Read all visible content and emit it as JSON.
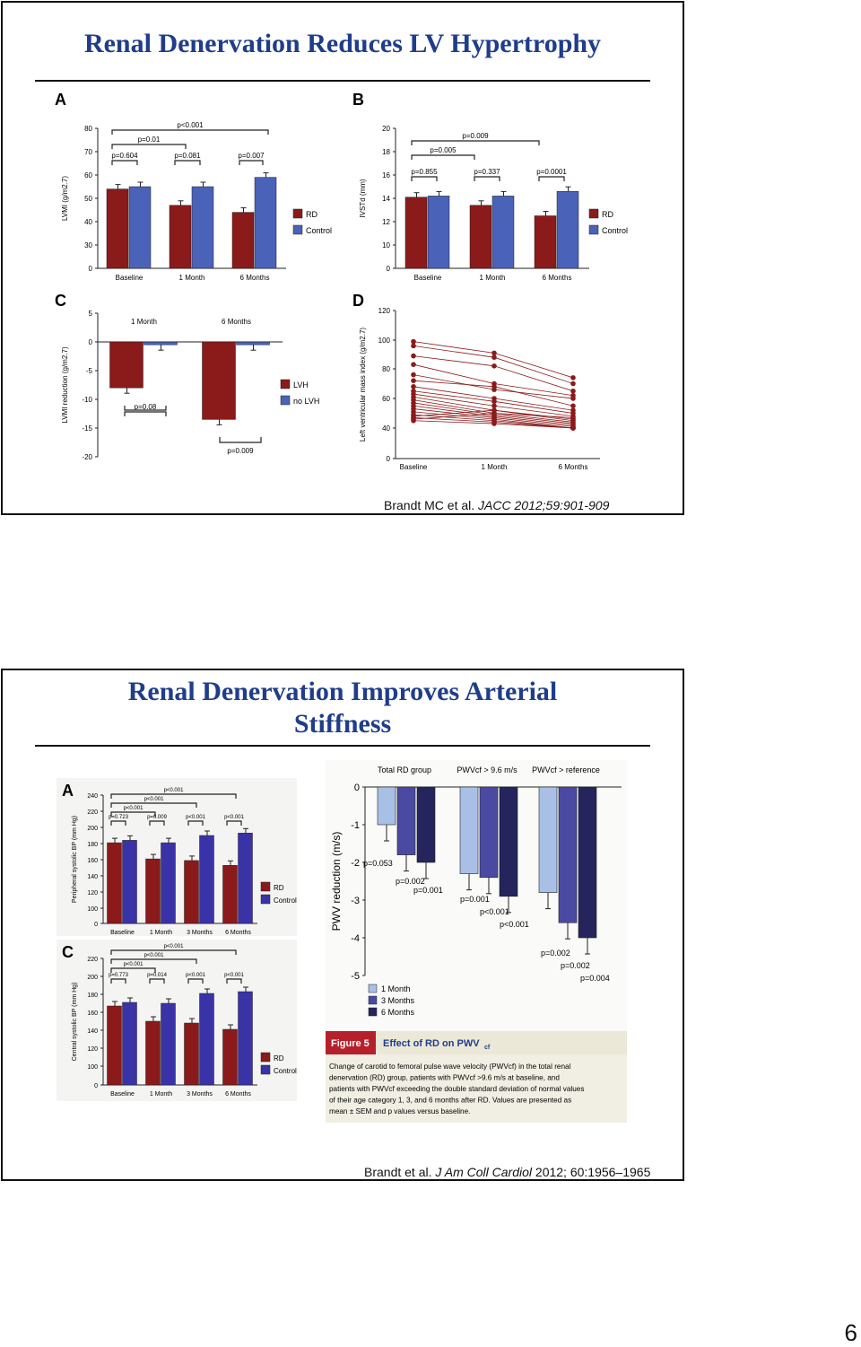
{
  "slides": [
    {
      "title": "Renal Denervation Reduces LV Hypertrophy",
      "citation": {
        "authors": "Brandt MC et al. ",
        "source": "JACC 2012;59:901-909"
      }
    },
    {
      "title_line1": "Renal Denervation Improves Arterial",
      "title_line2": "Stiffness",
      "citation": {
        "authors": "Brandt et al. ",
        "source": "J Am Coll Cardiol",
        "rest": " 2012; 60:1956–1965"
      }
    }
  ],
  "page_number": "6",
  "colors": {
    "rd": "#8b1a1a",
    "control": "#4a62b8",
    "title": "#1f3d8a",
    "m1": "#a9c0e6",
    "m3": "#4b4aa3",
    "m6": "#26245c"
  },
  "chart_data": [
    {
      "panel": "A",
      "type": "bar",
      "categories": [
        "Baseline",
        "1 Month",
        "6 Months"
      ],
      "ylabel": "LVMI (g/m2.7)",
      "yticks": [
        "0",
        "30",
        "40",
        "50",
        "60",
        "70",
        "80"
      ],
      "series": [
        {
          "name": "RD",
          "values": [
            54,
            47,
            44
          ]
        },
        {
          "name": "Control",
          "values": [
            55,
            55,
            59
          ]
        }
      ],
      "annotations": [
        "p<0.001",
        "p=0.01",
        "p=0.604",
        "p=0.081",
        "p=0.007"
      ]
    },
    {
      "panel": "B",
      "type": "bar",
      "categories": [
        "Baseline",
        "1 Month",
        "6 Months"
      ],
      "ylabel": "IVSTd (mm)",
      "yticks": [
        "0",
        "10",
        "12",
        "14",
        "16",
        "18",
        "20"
      ],
      "series": [
        {
          "name": "RD",
          "values": [
            14.1,
            13.4,
            12.5
          ]
        },
        {
          "name": "Control",
          "values": [
            14.2,
            14.2,
            14.6
          ]
        }
      ],
      "annotations": [
        "p=0.009",
        "p=0.005",
        "p=0.855",
        "p=0.337",
        "p=0.0001"
      ]
    },
    {
      "panel": "C",
      "type": "bar",
      "categories": [
        "1 Month",
        "6 Months"
      ],
      "ylabel": "LVMI reduction (g/m2.7)",
      "yticks": [
        "5",
        "0",
        "-5",
        "-10",
        "-15",
        "-20"
      ],
      "series": [
        {
          "name": "LVH",
          "values": [
            -8,
            -13.5
          ]
        },
        {
          "name": "no LVH",
          "values": [
            -0.5,
            -0.5
          ]
        }
      ],
      "annotations": [
        "p=0.08",
        "p=0.009"
      ]
    },
    {
      "panel": "D",
      "type": "line",
      "categories": [
        "Baseline",
        "1 Month",
        "6 Months"
      ],
      "ylabel": "Left ventricular mass index (g/m2.7)",
      "yticks": [
        "0",
        "40",
        "60",
        "80",
        "100",
        "120"
      ],
      "series": [
        {
          "values": [
            99,
            91,
            74
          ]
        },
        {
          "values": [
            96,
            88,
            70
          ]
        },
        {
          "values": [
            89,
            82,
            65
          ]
        },
        {
          "values": [
            83,
            70,
            62
          ]
        },
        {
          "values": [
            76,
            66,
            60
          ]
        },
        {
          "values": [
            72,
            68,
            55
          ]
        },
        {
          "values": [
            68,
            60,
            52
          ]
        },
        {
          "values": [
            65,
            58,
            50
          ]
        },
        {
          "values": [
            63,
            55,
            48
          ]
        },
        {
          "values": [
            61,
            52,
            46
          ]
        },
        {
          "values": [
            59,
            50,
            44
          ]
        },
        {
          "values": [
            57,
            49,
            43
          ]
        },
        {
          "values": [
            55,
            48,
            42
          ]
        },
        {
          "values": [
            53,
            47,
            41
          ]
        },
        {
          "values": [
            51,
            46,
            40
          ]
        },
        {
          "values": [
            49,
            45,
            39
          ]
        },
        {
          "values": [
            48,
            52,
            45
          ]
        },
        {
          "values": [
            47,
            44,
            38
          ]
        },
        {
          "values": [
            46,
            50,
            47
          ]
        },
        {
          "values": [
            45,
            43,
            37
          ]
        }
      ]
    },
    {
      "panel": "A",
      "type": "bar",
      "categories": [
        "Baseline",
        "1 Month",
        "3 Months",
        "6 Months"
      ],
      "ylabel": "Peripheral systolic BP (mm Hg)",
      "yticks": [
        "0",
        "100",
        "120",
        "140",
        "160",
        "180",
        "200",
        "220",
        "240"
      ],
      "series": [
        {
          "name": "RD",
          "values": [
            181,
            161,
            159,
            153
          ]
        },
        {
          "name": "Control",
          "values": [
            184,
            181,
            190,
            193
          ]
        }
      ],
      "annotations": [
        "p<0.001",
        "p<0.001",
        "p<0.001",
        "p=0.723",
        "p=0.009",
        "p<0.001",
        "p<0.001"
      ]
    },
    {
      "panel": "C",
      "type": "bar",
      "categories": [
        "Baseline",
        "1 Month",
        "3 Months",
        "6 Months"
      ],
      "ylabel": "Central systolic BP (mm Hg)",
      "yticks": [
        "0",
        "100",
        "120",
        "140",
        "160",
        "180",
        "200",
        "220"
      ],
      "series": [
        {
          "name": "RD",
          "values": [
            167,
            150,
            148,
            141
          ]
        },
        {
          "name": "Control",
          "values": [
            171,
            170,
            181,
            183
          ]
        }
      ],
      "annotations": [
        "p<0.001",
        "p<0.001",
        "p<0.001",
        "p=0.773",
        "p=0.014",
        "p<0.001",
        "p<0.001"
      ]
    },
    {
      "panel": "PWV",
      "type": "bar",
      "categories": [
        "Total RD group",
        "PWVcf > 9.6 m/s",
        "PWVcf > reference"
      ],
      "ylabel": "PWV reduction (m/s)",
      "yticks": [
        "0",
        "-1",
        "-2",
        "-3",
        "-4",
        "-5"
      ],
      "series": [
        {
          "name": "1 Month",
          "values": [
            -1.0,
            -2.3,
            -2.8
          ]
        },
        {
          "name": "3 Months",
          "values": [
            -1.8,
            -2.4,
            -3.6
          ]
        },
        {
          "name": "6 Months",
          "values": [
            -2.0,
            -2.9,
            -4.0
          ]
        }
      ],
      "annotations": [
        "p=0.053",
        "p=0.002",
        "p=0.001",
        "p=0.001",
        "p<0.001",
        "p<0.001",
        "p=0.002",
        "p=0.002",
        "p=0.004"
      ],
      "figure_label": "Figure 5",
      "figure_title": "Effect of RD on PWV",
      "figure_title_sub": "cf",
      "caption": [
        "Change of carotid to femoral pulse wave velocity (PWVcf) in the total renal",
        "denervation (RD) group, patients with PWVcf >9.6 m/s at baseline, and",
        "patients with PWVcf exceeding the double standard deviation of normal values",
        "of their age category 1, 3, and 6 months after RD. Values are presented as",
        "mean ± SEM and p values versus baseline."
      ]
    }
  ]
}
